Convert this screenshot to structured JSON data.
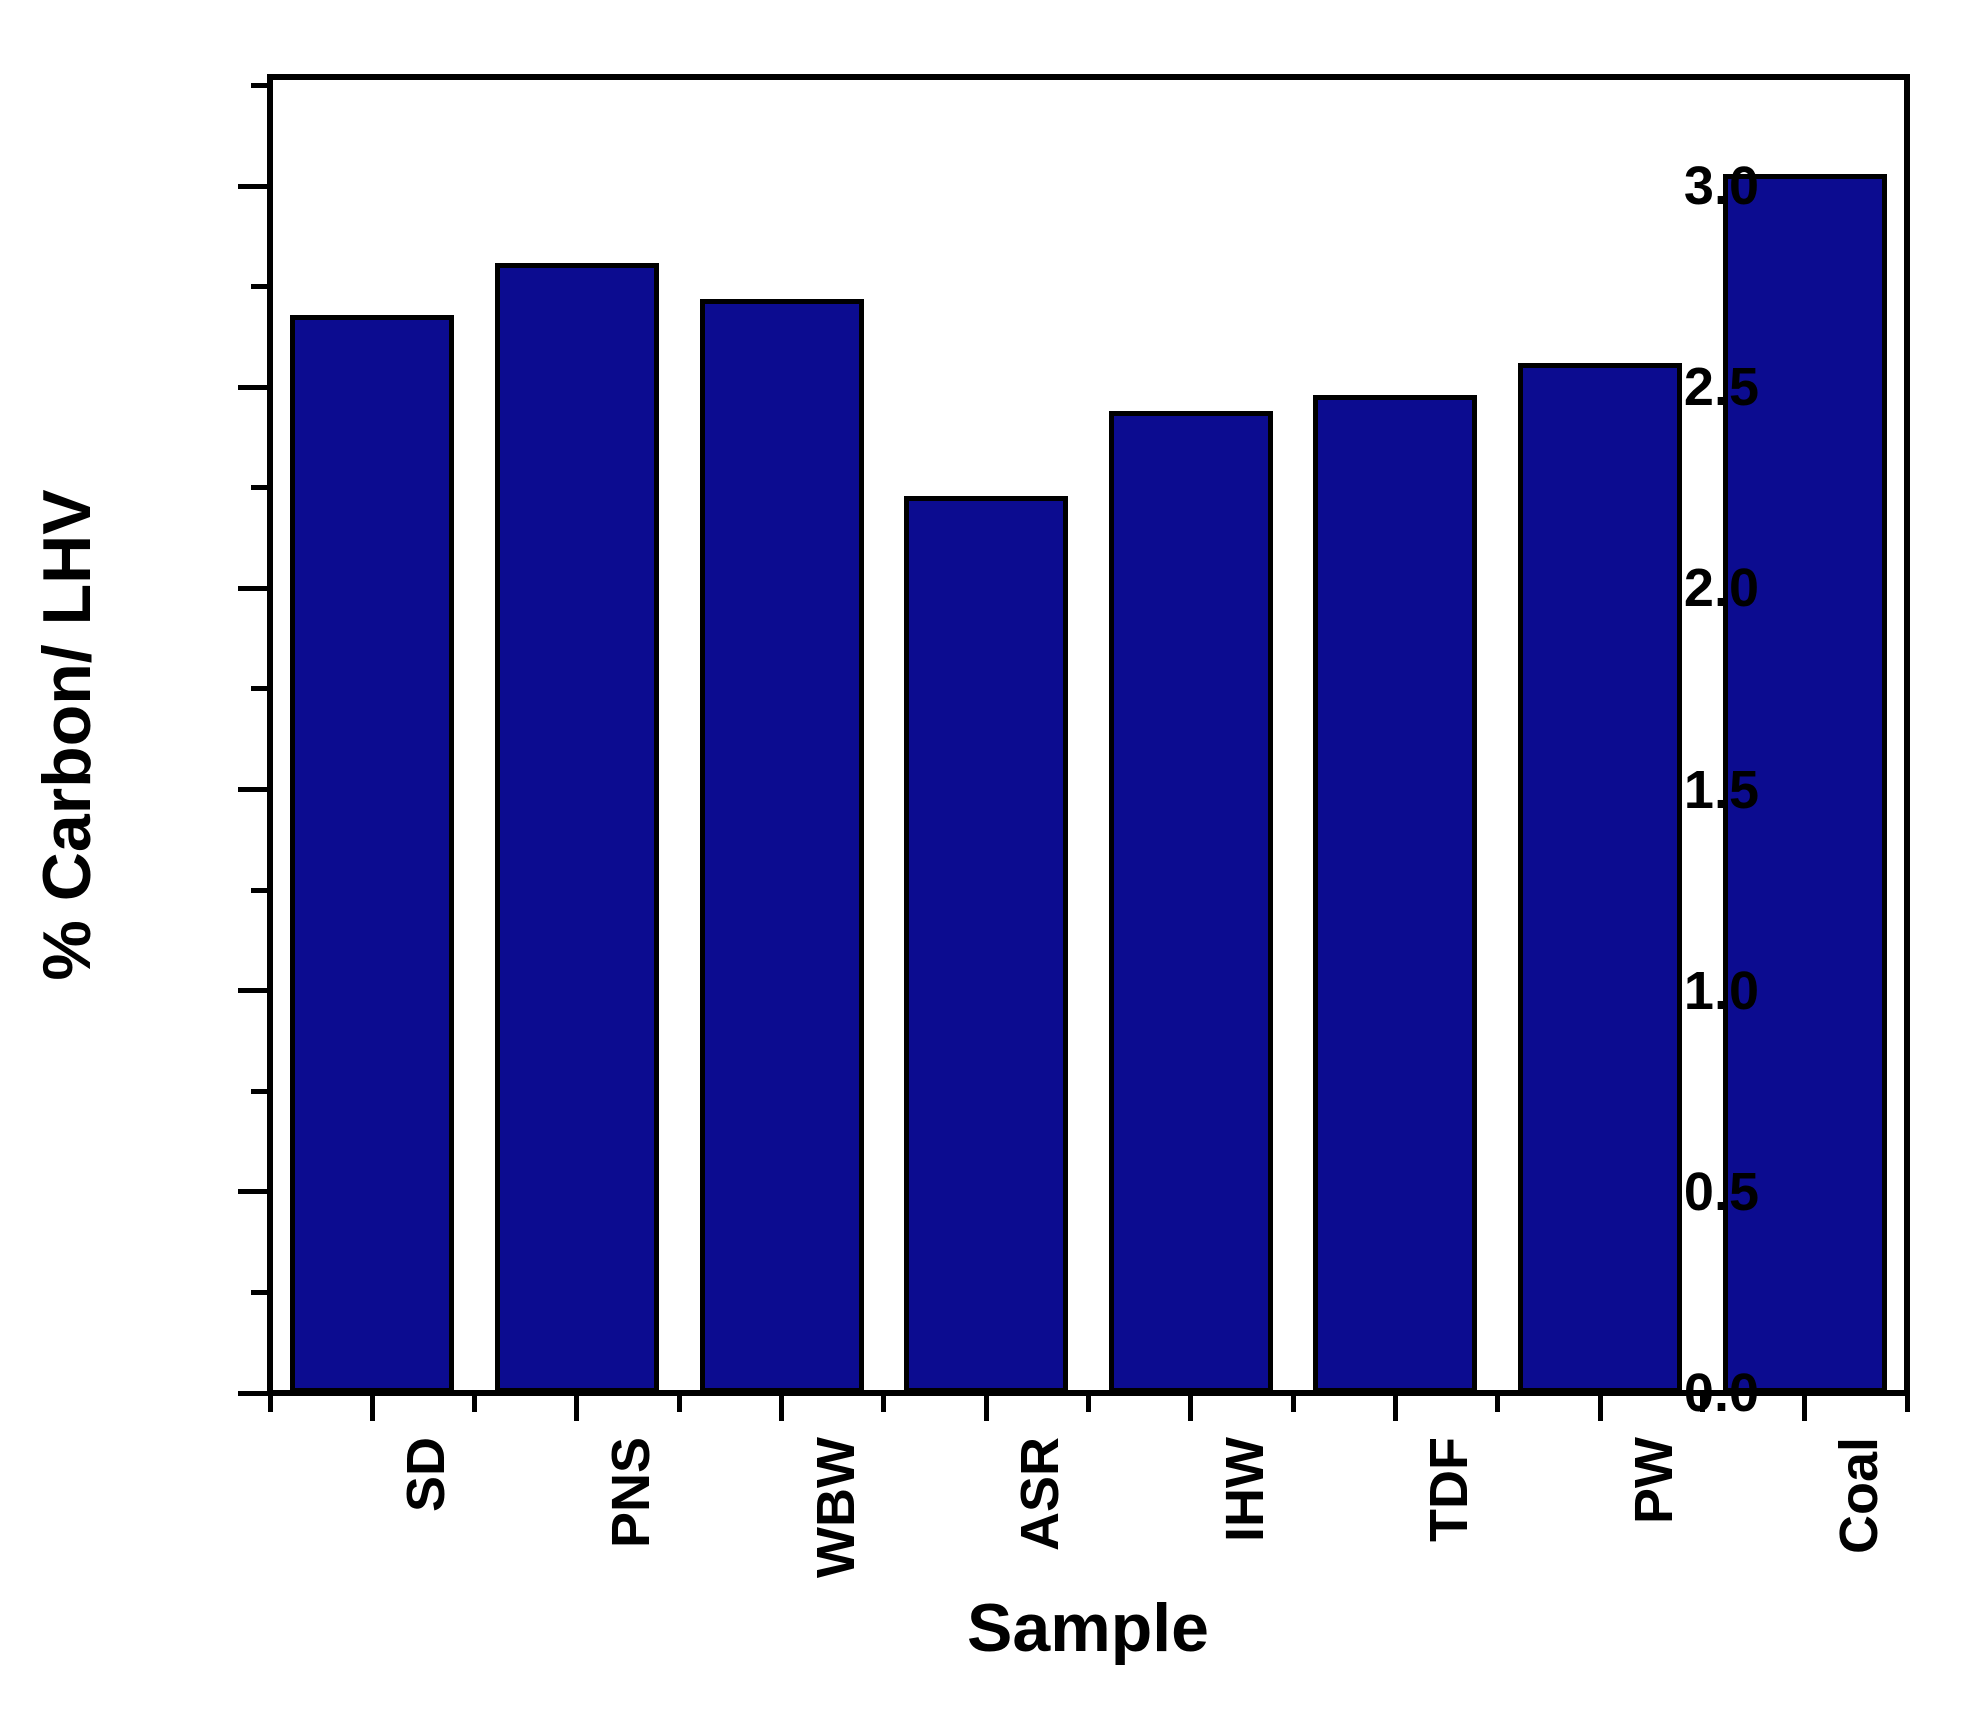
{
  "figure": {
    "background": "#ffffff",
    "text_color": "#000000"
  },
  "chart_data": {
    "type": "bar",
    "title": "",
    "xlabel": "Sample",
    "ylabel": "% Carbon/ LHV",
    "categories": [
      "SD",
      "PNS",
      "WBW",
      "ASR",
      "IHW",
      "TDF",
      "PW",
      "Coal"
    ],
    "values": [
      2.68,
      2.81,
      2.72,
      2.23,
      2.44,
      2.48,
      2.56,
      3.03
    ],
    "ylim": [
      0,
      3.28
    ],
    "yticks": {
      "labels": [
        "0.0",
        "0.5",
        "1.0",
        "1.5",
        "2.0",
        "2.5",
        "3.0"
      ],
      "values": [
        0,
        0.5,
        1,
        1.5,
        2,
        2.5,
        3
      ],
      "minor_values": [
        0.25,
        0.75,
        1.25,
        1.75,
        2.25,
        2.75,
        3.25
      ]
    },
    "grid": false,
    "legend_position": "none",
    "x_label_rotation_deg": -90,
    "bar_color": "#0c0c90",
    "bar_edge_color": "#000000",
    "axis_color": "#000000"
  }
}
